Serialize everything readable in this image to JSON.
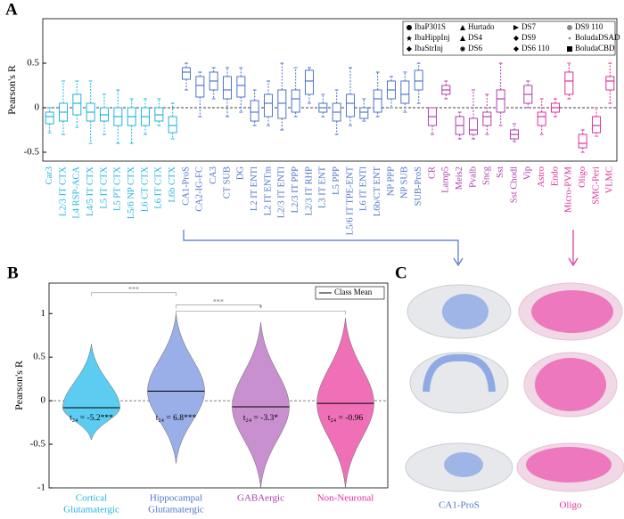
{
  "chart_data": [
    {
      "type": "box",
      "panel": "A",
      "ylabel": "Pearson's R",
      "ylim": [
        -0.6,
        1.0
      ],
      "yticks": [
        -0.5,
        0,
        0.5
      ],
      "categories": [
        "Car3",
        "L2/3 IT CTX",
        "L4 RSP-ACA",
        "L4/5 IT CTX",
        "L5 IT CTX",
        "L5 PT CTX",
        "L5/6 NP CTX",
        "L6 CT CTX",
        "L6 IT CTX",
        "L6b CTX",
        "CA1-ProS",
        "CA2-IG-FC",
        "CA3",
        "CT SUB",
        "DG",
        "L2 IT ENTl",
        "L2 IT ENTm",
        "L2/3 IT ENTl",
        "L2/3 IT PPP",
        "L2/3 IT RHP",
        "L3 IT ENT",
        "L5 PPP",
        "L5/6 IT TPE-ENT",
        "L6 IT ENTl",
        "L6b/CT ENT",
        "NP PPP",
        "NP SUB",
        "SUB-ProS",
        "CR",
        "Lamp5",
        "Meis2",
        "Pvalb",
        "Sncg",
        "Sst",
        "Sst Chodl",
        "Vip",
        "Astro",
        "Endo",
        "Micro-PVM",
        "Oligo",
        "SMC-Peri",
        "VLMC"
      ],
      "colors": [
        "#22b4e0",
        "#22b4e0",
        "#22b4e0",
        "#22b4e0",
        "#22b4e0",
        "#22b4e0",
        "#22b4e0",
        "#22b4e0",
        "#22b4e0",
        "#22b4e0",
        "#4f76c9",
        "#4f76c9",
        "#4f76c9",
        "#4f76c9",
        "#4f76c9",
        "#4f76c9",
        "#4f76c9",
        "#4f76c9",
        "#4f76c9",
        "#4f76c9",
        "#4f76c9",
        "#4f76c9",
        "#4f76c9",
        "#4f76c9",
        "#4f76c9",
        "#4f76c9",
        "#4f76c9",
        "#4f76c9",
        "#b040ae",
        "#b040ae",
        "#b040ae",
        "#b040ae",
        "#b040ae",
        "#b040ae",
        "#b040ae",
        "#b040ae",
        "#e0309a",
        "#e0309a",
        "#e0309a",
        "#e0309a",
        "#e0309a",
        "#e0309a"
      ],
      "whisker_low": [
        -0.28,
        -0.3,
        -0.22,
        -0.4,
        -0.3,
        -0.4,
        -0.4,
        -0.3,
        -0.2,
        -0.35,
        0.2,
        -0.1,
        0.1,
        -0.1,
        -0.05,
        -0.2,
        -0.2,
        -0.25,
        -0.1,
        0.05,
        -0.1,
        -0.3,
        -0.2,
        -0.15,
        -0.1,
        0.0,
        -0.05,
        0.05,
        -0.3,
        0.1,
        -0.35,
        -0.35,
        -0.3,
        -0.2,
        -0.38,
        0.0,
        -0.3,
        -0.1,
        0.1,
        -0.5,
        -0.32,
        0.05
      ],
      "q1": [
        -0.18,
        -0.15,
        -0.08,
        -0.15,
        -0.15,
        -0.2,
        -0.2,
        -0.2,
        -0.15,
        -0.28,
        0.32,
        0.12,
        0.2,
        0.1,
        0.12,
        -0.15,
        -0.1,
        -0.12,
        -0.05,
        0.15,
        -0.05,
        -0.15,
        -0.1,
        -0.12,
        -0.05,
        0.1,
        0.05,
        0.2,
        -0.2,
        0.15,
        -0.3,
        -0.3,
        -0.2,
        -0.05,
        -0.35,
        0.05,
        -0.2,
        -0.05,
        0.15,
        -0.45,
        -0.28,
        0.2
      ],
      "median": [
        -0.1,
        -0.05,
        0.05,
        -0.05,
        -0.08,
        -0.1,
        -0.1,
        -0.1,
        -0.08,
        -0.2,
        0.4,
        0.25,
        0.3,
        0.2,
        0.25,
        -0.05,
        0.05,
        0.05,
        0.1,
        0.3,
        0.0,
        -0.05,
        0.05,
        -0.05,
        0.1,
        0.2,
        0.15,
        0.3,
        -0.1,
        0.2,
        -0.2,
        -0.25,
        -0.1,
        0.1,
        -0.3,
        0.15,
        -0.1,
        0.0,
        0.3,
        -0.4,
        -0.2,
        0.3
      ],
      "q3": [
        -0.05,
        0.05,
        0.15,
        0.05,
        0.0,
        0.0,
        0.0,
        0.0,
        0.0,
        -0.1,
        0.45,
        0.35,
        0.4,
        0.35,
        0.35,
        0.08,
        0.15,
        0.2,
        0.2,
        0.42,
        0.05,
        0.05,
        0.15,
        0.0,
        0.2,
        0.3,
        0.3,
        0.42,
        0.0,
        0.25,
        -0.1,
        -0.12,
        -0.05,
        0.2,
        -0.25,
        0.25,
        -0.05,
        0.05,
        0.4,
        -0.3,
        -0.1,
        0.35
      ],
      "whisker_high": [
        0.0,
        0.3,
        0.3,
        0.3,
        0.15,
        0.2,
        0.1,
        0.1,
        0.1,
        0.05,
        0.5,
        0.4,
        0.45,
        0.45,
        0.45,
        0.2,
        0.3,
        0.5,
        0.45,
        0.45,
        0.15,
        0.2,
        0.45,
        0.1,
        0.4,
        0.35,
        0.4,
        0.5,
        0.0,
        0.3,
        -0.05,
        0.2,
        0.15,
        0.5,
        -0.18,
        0.3,
        0.1,
        0.1,
        0.5,
        -0.25,
        0.0,
        0.5
      ],
      "legend": [
        {
          "name": "IbaP301S",
          "marker": "circle"
        },
        {
          "name": "IbaHippInj",
          "marker": "star"
        },
        {
          "name": "IbaStrInj",
          "marker": "diamond"
        },
        {
          "name": "Hurtado",
          "marker": "triangle"
        },
        {
          "name": "DS4",
          "marker": "triangle"
        },
        {
          "name": "DS6",
          "marker": "asterisk"
        },
        {
          "name": "DS7",
          "marker": "right"
        },
        {
          "name": "DS9",
          "marker": "diamond"
        },
        {
          "name": "DS6 110",
          "marker": "diamond"
        },
        {
          "name": "DS9 110",
          "marker": "circle"
        },
        {
          "name": "BoludaDSAD",
          "marker": "dot"
        },
        {
          "name": "BoludaCBD",
          "marker": "square"
        }
      ]
    },
    {
      "type": "violin",
      "panel": "B",
      "ylabel": "Pearson's R",
      "ylim": [
        -1,
        1.35
      ],
      "yticks": [
        -1,
        -0.5,
        0,
        0.5,
        1
      ],
      "categories": [
        [
          "Cortical",
          "Glutamatergic"
        ],
        [
          "Hippocampal",
          "Glutamatergic"
        ],
        [
          "GABAergic"
        ],
        [
          "Non-Neuronal"
        ]
      ],
      "colors": [
        "#5ccdf0",
        "#9aaee8",
        "#c890cf",
        "#f070b8"
      ],
      "label_colors": [
        "#22b4e0",
        "#4f76c9",
        "#b040ae",
        "#e0309a"
      ],
      "means": [
        -0.08,
        0.11,
        -0.07,
        -0.03
      ],
      "mins": [
        -0.45,
        -0.72,
        -1.0,
        -1.0
      ],
      "maxs": [
        0.65,
        1.0,
        0.9,
        0.95
      ],
      "annotations": [
        "t₂₄ = -5.2***",
        "t₂₄ = 6.8***",
        "t₂₄ = -3.3*",
        "t₂₄ = -0.96"
      ],
      "significance": [
        "***",
        "***",
        "*"
      ],
      "legend": "Class Mean"
    },
    {
      "type": "image",
      "panel": "C",
      "labels": [
        "CA1-ProS",
        "Oligo"
      ]
    }
  ]
}
